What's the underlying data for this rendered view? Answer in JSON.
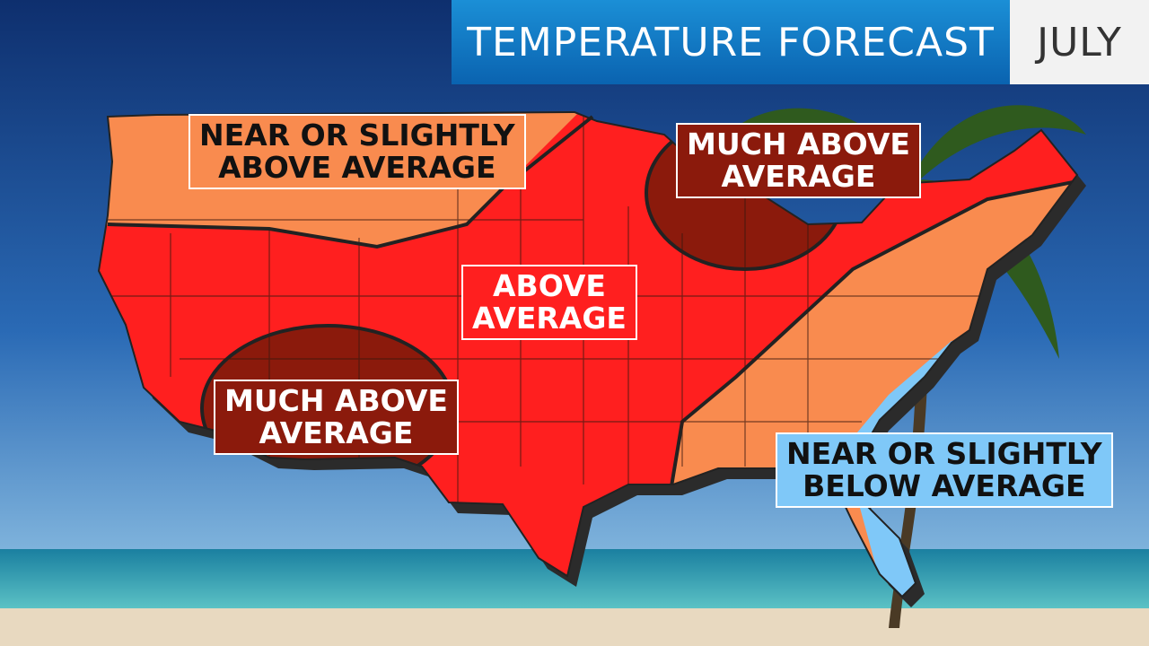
{
  "header": {
    "title": "TEMPERATURE FORECAST",
    "month": "JULY"
  },
  "labels": [
    {
      "lines": [
        "NEAR OR SLIGHTLY",
        "ABOVE AVERAGE"
      ]
    },
    {
      "lines": [
        "MUCH ABOVE",
        "AVERAGE"
      ]
    },
    {
      "lines": [
        "ABOVE",
        "AVERAGE"
      ]
    },
    {
      "lines": [
        "MUCH ABOVE",
        "AVERAGE"
      ]
    },
    {
      "lines": [
        "NEAR OR SLIGHTLY",
        "BELOW AVERAGE"
      ]
    }
  ]
}
